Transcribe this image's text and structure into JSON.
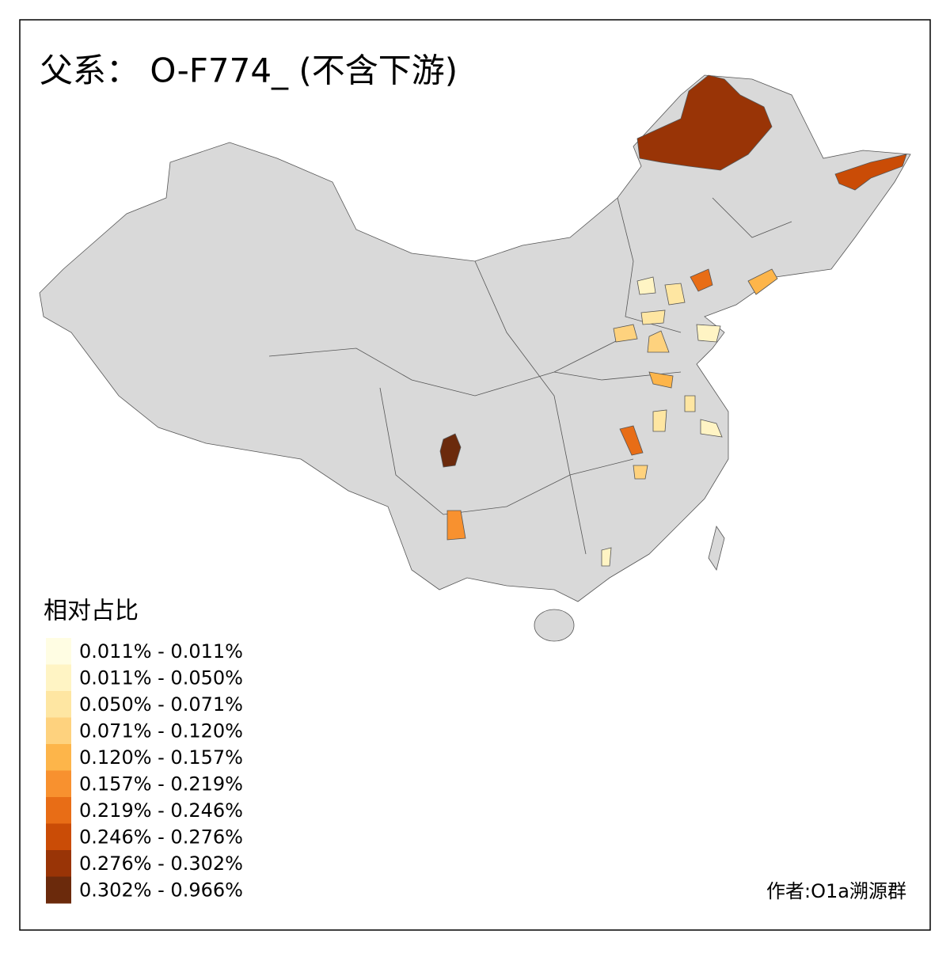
{
  "title": "父系： O-F774_ (不含下游)",
  "legend": {
    "title": "相对占比",
    "items": [
      {
        "label": "0.011% - 0.011%",
        "color": "#fffde3"
      },
      {
        "label": "0.011% - 0.050%",
        "color": "#fff4c4"
      },
      {
        "label": "0.050% - 0.071%",
        "color": "#fee6a2"
      },
      {
        "label": "0.071% - 0.120%",
        "color": "#fed27e"
      },
      {
        "label": "0.120% - 0.157%",
        "color": "#fdb54a"
      },
      {
        "label": "0.157% - 0.219%",
        "color": "#f8912f"
      },
      {
        "label": "0.219% - 0.246%",
        "color": "#e86d16"
      },
      {
        "label": "0.246% - 0.276%",
        "color": "#ca4c06"
      },
      {
        "label": "0.276% - 0.302%",
        "color": "#993406"
      },
      {
        "label": "0.302% - 0.966%",
        "color": "#6b2a0c"
      }
    ]
  },
  "credit": "作者:O1a溯源群"
}
